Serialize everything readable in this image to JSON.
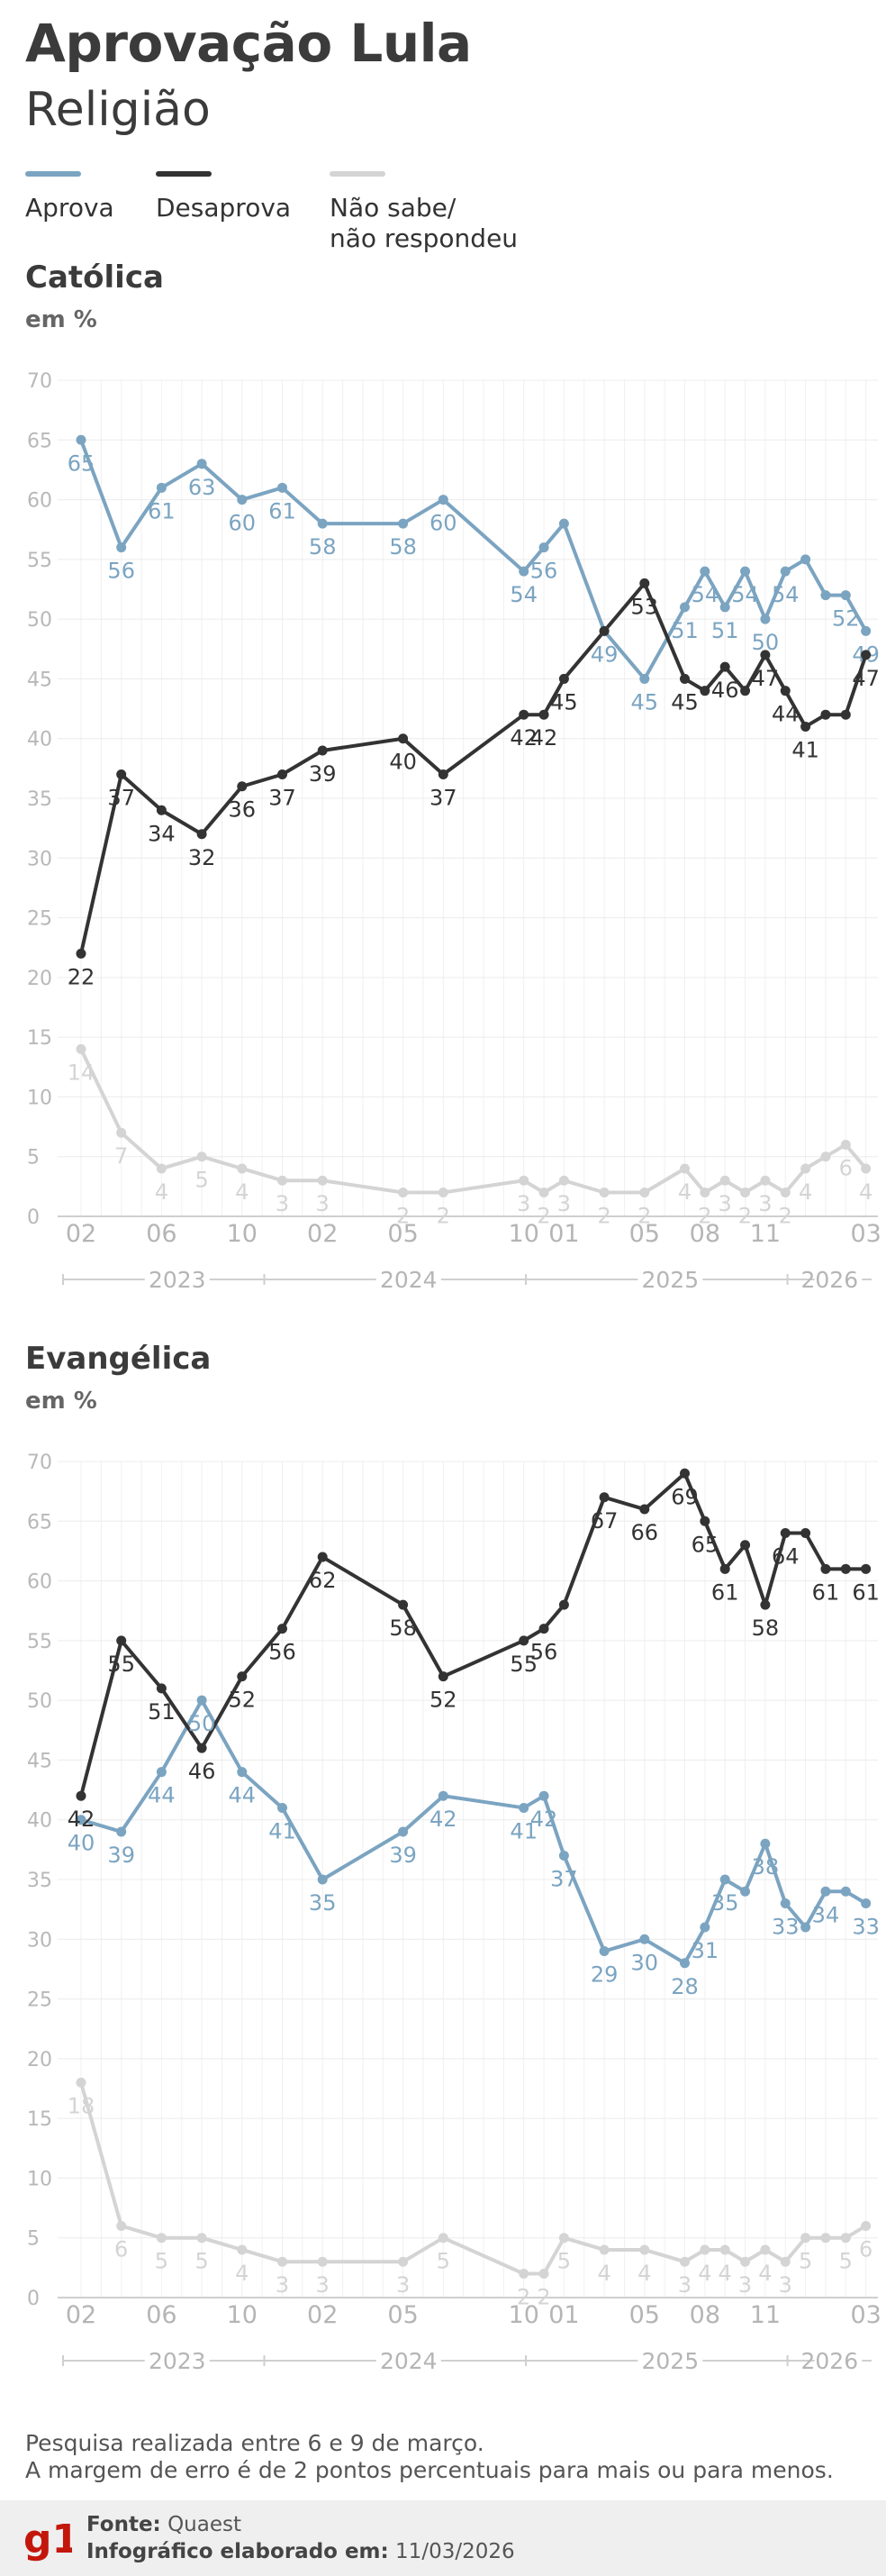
{
  "header": {
    "title": "Aprovação Lula",
    "subtitle": "Religião"
  },
  "legend": {
    "items": [
      {
        "label": "Aprova",
        "color": "#7ba4c1"
      },
      {
        "label": "Desaprova",
        "color": "#333333"
      },
      {
        "label": "Não sabe/\nnão respondeu",
        "color": "#d4d4d4"
      }
    ]
  },
  "chart_data": [
    {
      "type": "line",
      "title": "Católica",
      "ylabel": "em %",
      "ylim": [
        0,
        70
      ],
      "yticks": [
        0,
        5,
        10,
        15,
        20,
        25,
        30,
        35,
        40,
        45,
        50,
        55,
        60,
        65,
        70
      ],
      "grid": true,
      "x_tick_labels": [
        {
          "i": 0,
          "label": "02"
        },
        {
          "i": 2,
          "label": "06"
        },
        {
          "i": 4,
          "label": "10"
        },
        {
          "i": 6,
          "label": "02"
        },
        {
          "i": 8,
          "label": "05"
        },
        {
          "i": 11,
          "label": "10"
        },
        {
          "i": 12,
          "label": "01"
        },
        {
          "i": 14,
          "label": "05"
        },
        {
          "i": 15.5,
          "label": "08"
        },
        {
          "i": 17,
          "label": "11"
        },
        {
          "i": 19.5,
          "label": "03"
        }
      ],
      "years": [
        {
          "label": "2023",
          "from": 0,
          "to": 5
        },
        {
          "label": "2024",
          "from": 5,
          "to": 11.5
        },
        {
          "label": "2025",
          "from": 11.5,
          "to": 18
        },
        {
          "label": "2026",
          "from": 18,
          "to": 19.5
        }
      ],
      "series": [
        {
          "name": "Aprova",
          "color": "#7ba4c1",
          "x": [
            0,
            1,
            2,
            3,
            4,
            5,
            6,
            8,
            9,
            11,
            11.5,
            12,
            13,
            14,
            15,
            15.5,
            16,
            16.5,
            17,
            17.5,
            18,
            18.5,
            19,
            19.5
          ],
          "values": [
            65,
            56,
            61,
            63,
            60,
            61,
            58,
            58,
            60,
            54,
            56,
            58,
            49,
            45,
            51,
            54,
            51,
            54,
            50,
            54,
            55,
            52,
            52,
            49
          ],
          "labels": [
            "65",
            "56",
            "61",
            "63",
            "60",
            "61",
            "58",
            "58",
            "60",
            "54",
            "56",
            "",
            "49",
            "45",
            "51",
            "54",
            "51",
            "54",
            "50",
            "54",
            "",
            "",
            "52",
            "49"
          ]
        },
        {
          "name": "Desaprova",
          "color": "#333333",
          "x": [
            0,
            1,
            2,
            3,
            4,
            5,
            6,
            8,
            9,
            11,
            11.5,
            12,
            13,
            14,
            15,
            15.5,
            16,
            16.5,
            17,
            17.5,
            18,
            18.5,
            19,
            19.5
          ],
          "values": [
            22,
            37,
            34,
            32,
            36,
            37,
            39,
            40,
            37,
            42,
            42,
            45,
            49,
            53,
            45,
            44,
            46,
            44,
            47,
            44,
            41,
            42,
            42,
            47
          ],
          "labels": [
            "22",
            "37",
            "34",
            "32",
            "36",
            "37",
            "39",
            "40",
            "37",
            "42",
            "42",
            "45",
            "",
            "53",
            "45",
            "",
            "46",
            "",
            "47",
            "44",
            "41",
            "",
            "",
            "47"
          ]
        },
        {
          "name": "Não sabe/não respondeu",
          "color": "#d4d4d4",
          "x": [
            0,
            1,
            2,
            3,
            4,
            5,
            6,
            8,
            9,
            11,
            11.5,
            12,
            13,
            14,
            15,
            15.5,
            16,
            16.5,
            17,
            17.5,
            18,
            18.5,
            19,
            19.5
          ],
          "values": [
            14,
            7,
            4,
            5,
            4,
            3,
            3,
            2,
            2,
            3,
            2,
            3,
            2,
            2,
            4,
            2,
            3,
            2,
            3,
            2,
            4,
            5,
            6,
            4
          ],
          "labels": [
            "14",
            "7",
            "4",
            "5",
            "4",
            "3",
            "3",
            "2",
            "2",
            "3",
            "2",
            "3",
            "2",
            "2",
            "4",
            "2",
            "3",
            "2",
            "3",
            "2",
            "4",
            "",
            "6",
            "4"
          ]
        }
      ]
    },
    {
      "type": "line",
      "title": "Evangélica",
      "ylabel": "em %",
      "ylim": [
        0,
        70
      ],
      "yticks": [
        0,
        5,
        10,
        15,
        20,
        25,
        30,
        35,
        40,
        45,
        50,
        55,
        60,
        65,
        70
      ],
      "grid": true,
      "x_tick_labels": [
        {
          "i": 0,
          "label": "02"
        },
        {
          "i": 2,
          "label": "06"
        },
        {
          "i": 4,
          "label": "10"
        },
        {
          "i": 6,
          "label": "02"
        },
        {
          "i": 8,
          "label": "05"
        },
        {
          "i": 11,
          "label": "10"
        },
        {
          "i": 12,
          "label": "01"
        },
        {
          "i": 14,
          "label": "05"
        },
        {
          "i": 15.5,
          "label": "08"
        },
        {
          "i": 17,
          "label": "11"
        },
        {
          "i": 19.5,
          "label": "03"
        }
      ],
      "years": [
        {
          "label": "2023",
          "from": 0,
          "to": 5
        },
        {
          "label": "2024",
          "from": 5,
          "to": 11.5
        },
        {
          "label": "2025",
          "from": 11.5,
          "to": 18
        },
        {
          "label": "2026",
          "from": 18,
          "to": 19.5
        }
      ],
      "series": [
        {
          "name": "Aprova",
          "color": "#7ba4c1",
          "x": [
            0,
            1,
            2,
            3,
            4,
            5,
            6,
            8,
            9,
            11,
            11.5,
            12,
            13,
            14,
            15,
            15.5,
            16,
            16.5,
            17,
            17.5,
            18,
            18.5,
            19,
            19.5
          ],
          "values": [
            40,
            39,
            44,
            50,
            44,
            41,
            35,
            39,
            42,
            41,
            42,
            37,
            29,
            30,
            28,
            31,
            35,
            34,
            38,
            33,
            31,
            34,
            34,
            33
          ],
          "labels": [
            "40",
            "39",
            "44",
            "50",
            "44",
            "41",
            "35",
            "39",
            "42",
            "41",
            "42",
            "37",
            "29",
            "30",
            "28",
            "31",
            "35",
            "",
            "38",
            "33",
            "",
            "34",
            "",
            "33"
          ]
        },
        {
          "name": "Desaprova",
          "color": "#333333",
          "x": [
            0,
            1,
            2,
            3,
            4,
            5,
            6,
            8,
            9,
            11,
            11.5,
            12,
            13,
            14,
            15,
            15.5,
            16,
            16.5,
            17,
            17.5,
            18,
            18.5,
            19,
            19.5
          ],
          "values": [
            42,
            55,
            51,
            46,
            52,
            56,
            62,
            58,
            52,
            55,
            56,
            58,
            67,
            66,
            69,
            65,
            61,
            63,
            58,
            64,
            64,
            61,
            61,
            61
          ],
          "labels": [
            "42",
            "55",
            "51",
            "46",
            "52",
            "56",
            "62",
            "58",
            "52",
            "55",
            "56",
            "",
            "67",
            "66",
            "69",
            "65",
            "61",
            "",
            "58",
            "64",
            "",
            "61",
            "",
            "61"
          ]
        },
        {
          "name": "Não sabe/não respondeu",
          "color": "#d4d4d4",
          "x": [
            0,
            1,
            2,
            3,
            4,
            5,
            6,
            8,
            9,
            11,
            11.5,
            12,
            13,
            14,
            15,
            15.5,
            16,
            16.5,
            17,
            17.5,
            18,
            18.5,
            19,
            19.5
          ],
          "values": [
            18,
            6,
            5,
            5,
            4,
            3,
            3,
            3,
            5,
            2,
            2,
            5,
            4,
            4,
            3,
            4,
            4,
            3,
            4,
            3,
            5,
            5,
            5,
            6
          ],
          "labels": [
            "18",
            "6",
            "5",
            "5",
            "4",
            "3",
            "3",
            "3",
            "5",
            "2",
            "2",
            "5",
            "4",
            "4",
            "3",
            "4",
            "4",
            "3",
            "4",
            "3",
            "5",
            "",
            "5",
            "6"
          ]
        }
      ]
    }
  ],
  "note": {
    "line1": "Pesquisa realizada entre 6 e 9 de março.",
    "line2": "A margem de erro é de 2 pontos percentuais para mais ou para menos."
  },
  "footer": {
    "logo_text": "g1",
    "logo_color": "#c4170c",
    "source_label": "Fonte:",
    "source_value": "Quaest",
    "made_label": "Infográfico elaborado em:",
    "made_value": "11/03/2026"
  }
}
